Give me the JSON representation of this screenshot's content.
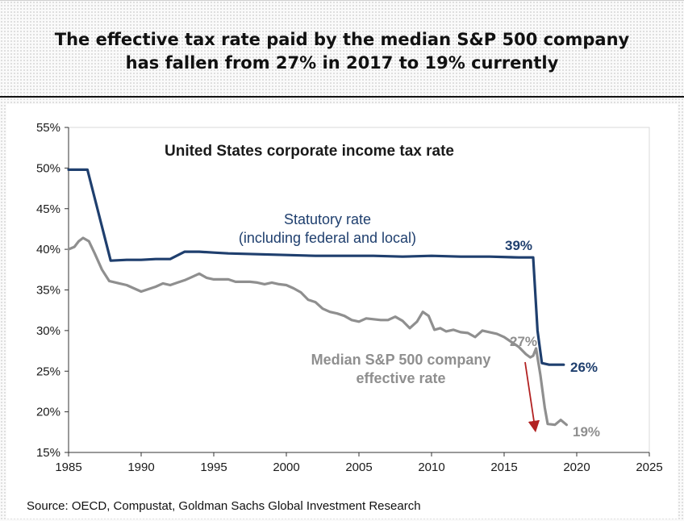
{
  "headline": {
    "line1": "The effective tax rate paid by the median S&P 500 company",
    "line2": "has fallen from 27% in 2017 to 19% currently"
  },
  "chart_data": {
    "type": "line",
    "title": "United States corporate income tax rate",
    "xlabel": "",
    "ylabel": "",
    "xlim": [
      1985,
      2025
    ],
    "ylim": [
      15,
      55
    ],
    "x_ticks": [
      "1985",
      "1990",
      "1995",
      "2000",
      "2005",
      "2010",
      "2015",
      "2020",
      "2025"
    ],
    "y_ticks": [
      "15%",
      "20%",
      "25%",
      "30%",
      "35%",
      "40%",
      "45%",
      "50%",
      "55%"
    ],
    "grid": false,
    "series": [
      {
        "label_lines": [
          "Statutory rate",
          "(including federal and local)"
        ],
        "color": "#1f3f6e",
        "points": [
          [
            1985,
            49.8
          ],
          [
            1986,
            49.8
          ],
          [
            1986.3,
            49.8
          ],
          [
            1987.9,
            38.6
          ],
          [
            1989,
            38.7
          ],
          [
            1990,
            38.7
          ],
          [
            1991,
            38.8
          ],
          [
            1992,
            38.8
          ],
          [
            1993,
            39.7
          ],
          [
            1994,
            39.7
          ],
          [
            1995,
            39.6
          ],
          [
            1996,
            39.5
          ],
          [
            1998,
            39.4
          ],
          [
            2000,
            39.3
          ],
          [
            2002,
            39.2
          ],
          [
            2004,
            39.2
          ],
          [
            2006,
            39.2
          ],
          [
            2008,
            39.1
          ],
          [
            2010,
            39.2
          ],
          [
            2012,
            39.1
          ],
          [
            2014,
            39.1
          ],
          [
            2016,
            39.0
          ],
          [
            2017,
            39.0
          ],
          [
            2017.3,
            30.0
          ],
          [
            2017.6,
            26.0
          ],
          [
            2018.1,
            25.8
          ],
          [
            2019.1,
            25.8
          ]
        ]
      },
      {
        "label_lines": [
          "Median S&P 500 company",
          "effective rate"
        ],
        "color": "#8f8f8f",
        "points": [
          [
            1985,
            40.0
          ],
          [
            1985.4,
            40.3
          ],
          [
            1985.7,
            41.0
          ],
          [
            1986,
            41.4
          ],
          [
            1986.4,
            41.0
          ],
          [
            1986.8,
            39.5
          ],
          [
            1987.3,
            37.5
          ],
          [
            1987.8,
            36.1
          ],
          [
            1988.5,
            35.8
          ],
          [
            1989,
            35.6
          ],
          [
            1989.5,
            35.2
          ],
          [
            1990,
            34.8
          ],
          [
            1990.5,
            35.1
          ],
          [
            1991,
            35.4
          ],
          [
            1991.5,
            35.8
          ],
          [
            1992,
            35.6
          ],
          [
            1992.5,
            35.9
          ],
          [
            1993,
            36.2
          ],
          [
            1993.5,
            36.6
          ],
          [
            1994,
            37.0
          ],
          [
            1994.5,
            36.5
          ],
          [
            1995,
            36.3
          ],
          [
            1995.5,
            36.3
          ],
          [
            1996,
            36.3
          ],
          [
            1996.5,
            36.0
          ],
          [
            1997,
            36.0
          ],
          [
            1997.5,
            36.0
          ],
          [
            1998,
            35.9
          ],
          [
            1998.5,
            35.7
          ],
          [
            1999,
            35.9
          ],
          [
            1999.5,
            35.7
          ],
          [
            2000,
            35.6
          ],
          [
            2000.5,
            35.2
          ],
          [
            2001,
            34.7
          ],
          [
            2001.5,
            33.8
          ],
          [
            2002,
            33.5
          ],
          [
            2002.5,
            32.7
          ],
          [
            2003,
            32.3
          ],
          [
            2003.5,
            32.1
          ],
          [
            2004,
            31.8
          ],
          [
            2004.5,
            31.3
          ],
          [
            2005,
            31.1
          ],
          [
            2005.5,
            31.5
          ],
          [
            2006,
            31.4
          ],
          [
            2006.5,
            31.3
          ],
          [
            2007,
            31.3
          ],
          [
            2007.5,
            31.7
          ],
          [
            2008,
            31.2
          ],
          [
            2008.5,
            30.3
          ],
          [
            2009,
            31.1
          ],
          [
            2009.4,
            32.3
          ],
          [
            2009.8,
            31.8
          ],
          [
            2010.2,
            30.1
          ],
          [
            2010.6,
            30.3
          ],
          [
            2011,
            29.9
          ],
          [
            2011.5,
            30.1
          ],
          [
            2012,
            29.8
          ],
          [
            2012.5,
            29.7
          ],
          [
            2013,
            29.2
          ],
          [
            2013.5,
            30.0
          ],
          [
            2014,
            29.8
          ],
          [
            2014.5,
            29.6
          ],
          [
            2015,
            29.2
          ],
          [
            2015.5,
            28.6
          ],
          [
            2016,
            28.0
          ],
          [
            2016.5,
            27.1
          ],
          [
            2016.8,
            26.7
          ],
          [
            2017,
            26.9
          ],
          [
            2017.2,
            27.8
          ],
          [
            2017.5,
            24.5
          ],
          [
            2017.8,
            20.5
          ],
          [
            2018,
            18.5
          ],
          [
            2018.5,
            18.4
          ],
          [
            2018.9,
            19.0
          ],
          [
            2019.3,
            18.4
          ]
        ]
      }
    ],
    "annotations": {
      "statutory_end_before": "39%",
      "statutory_end_after": "26%",
      "median_before": "27%",
      "median_after": "19%"
    },
    "arrow_color": "#b22222",
    "axis_color": "#333333",
    "text_color": "#1a1a1a",
    "gray_text_color": "#8f8f8f"
  },
  "source": "Source: OECD, Compustat, Goldman Sachs Global Investment Research"
}
